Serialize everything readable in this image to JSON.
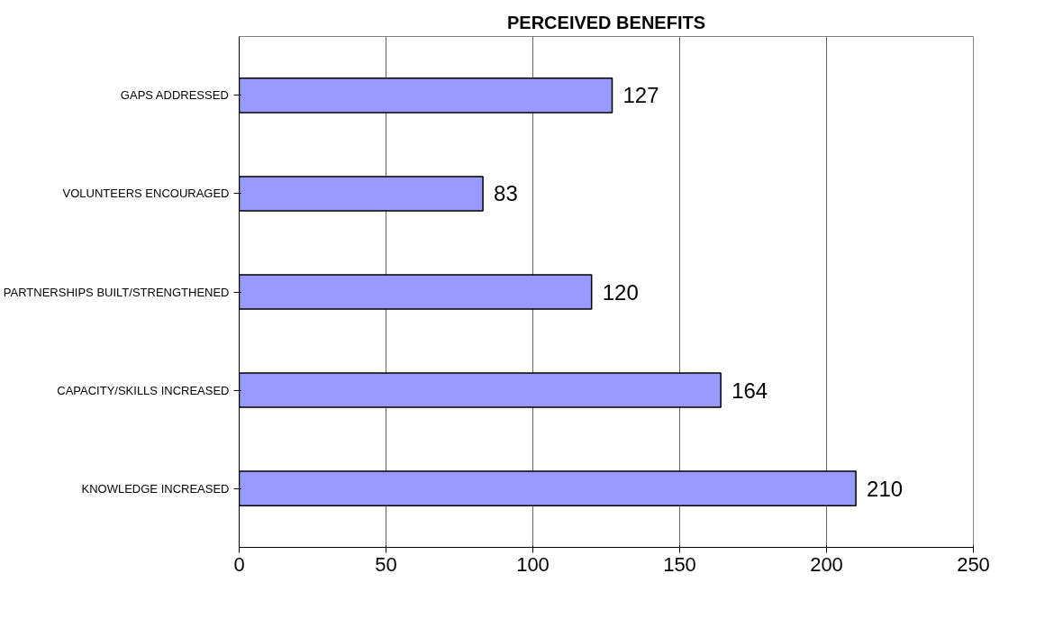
{
  "chart_data": {
    "type": "bar",
    "orientation": "horizontal",
    "title": "PERCEIVED BENEFITS",
    "categories": [
      "GAPS ADDRESSED",
      "VOLUNTEERS ENCOURAGED",
      "PARTNERSHIPS BUILT/STRENGTHENED",
      "CAPACITY/SKILLS INCREASED",
      "KNOWLEDGE INCREASED"
    ],
    "values": [
      127,
      83,
      120,
      164,
      210
    ],
    "color": "#9999ff",
    "xlim": [
      0,
      250
    ],
    "xticks": [
      0,
      50,
      100,
      150,
      200,
      250
    ],
    "grid": "x",
    "data_labels": true
  }
}
